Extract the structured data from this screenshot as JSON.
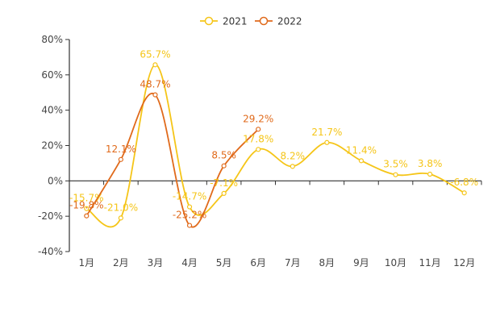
{
  "chart_data": {
    "type": "line",
    "categories": [
      "1月",
      "2月",
      "3月",
      "4月",
      "5月",
      "6月",
      "7月",
      "8月",
      "9月",
      "10月",
      "11月",
      "12月"
    ],
    "series": [
      {
        "name": "2021",
        "color": "#f5c518",
        "values": [
          -15.7,
          -21.0,
          65.7,
          -14.7,
          -7.1,
          17.8,
          8.2,
          21.7,
          11.4,
          3.5,
          3.8,
          -6.8
        ],
        "labels": [
          "-15.7%",
          "-21.0%",
          "65.7%",
          "-14.7%",
          "-7.1%",
          "17.8%",
          "8.2%",
          "21.7%",
          "11.4%",
          "3.5%",
          "3.8%",
          "-6.8%"
        ]
      },
      {
        "name": "2022",
        "color": "#e06a1b",
        "values": [
          -19.8,
          12.1,
          48.7,
          -25.2,
          8.5,
          29.2,
          null,
          null,
          null,
          null,
          null,
          null
        ],
        "labels": [
          "-19.8%",
          "12.1%",
          "48.7%",
          "-25.2%",
          "8.5%",
          "29.2%"
        ]
      }
    ],
    "yticks": [
      "-40%",
      "-20%",
      "0%",
      "20%",
      "40%",
      "60%",
      "80%"
    ],
    "ylim": [
      -40,
      80
    ],
    "legend_position": "top-center",
    "grid": false,
    "smooth": true
  }
}
